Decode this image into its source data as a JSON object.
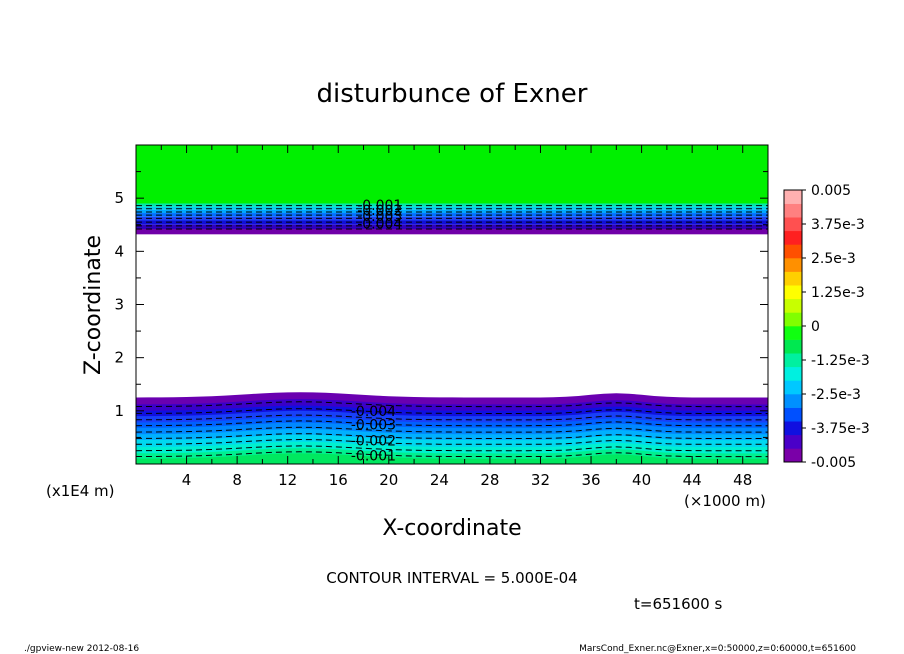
{
  "chart_data": {
    "type": "contour",
    "title": "disturbunce of Exner",
    "xlabel": "X-coordinate",
    "ylabel": "Z-coordinate",
    "x_unit_note": "(×1000 m)",
    "y_unit_note": "(x1E4 m)",
    "xlim": [
      0,
      50
    ],
    "ylim": [
      0,
      6
    ],
    "x_ticks": [
      4,
      8,
      12,
      16,
      20,
      24,
      28,
      32,
      36,
      40,
      44,
      48
    ],
    "y_ticks": [
      1,
      2,
      3,
      4,
      5
    ],
    "contour_interval_text": "CONTOUR INTERVAL = 5.000E-04",
    "time_text": "t=651600 s",
    "upper_contour_labels": [
      "-0.001",
      "-0.002",
      "-0.003",
      "-0.004"
    ],
    "lower_contour_labels": [
      "-0.004",
      "-0.003",
      "-0.002",
      "-0.001"
    ],
    "colorbar": {
      "labels": [
        "0.005",
        "3.75e-3",
        "2.5e-3",
        "1.25e-3",
        "0",
        "-1.25e-3",
        "-2.5e-3",
        "-3.75e-3",
        "-0.005"
      ],
      "colors": [
        "#7a00a8",
        "#4a00c8",
        "#1010e0",
        "#0050ff",
        "#0090ff",
        "#00c8ff",
        "#00f0e0",
        "#00f0a0",
        "#00e850",
        "#10ff10",
        "#80ff00",
        "#c8ff00",
        "#ffff00",
        "#ffd000",
        "#ff9000",
        "#ff5000",
        "#ff2020",
        "#ff5050",
        "#ff8080",
        "#ffb0b0"
      ]
    }
  },
  "footer": {
    "left": "./gpview-new   2012-08-16",
    "right": "MarsCond_Exner.nc@Exner,x=0:50000,z=0:60000,t=651600"
  }
}
